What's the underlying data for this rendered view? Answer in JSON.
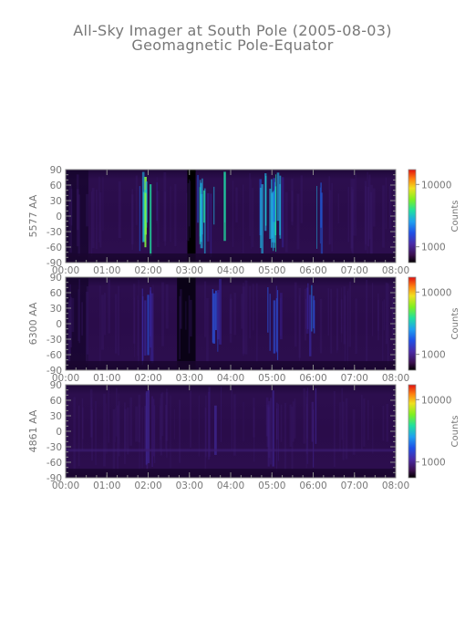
{
  "title": {
    "line1": "All-Sky Imager at South Pole (2005-08-03)",
    "line2": "Geomagnetic Pole-Equator"
  },
  "chart_data": [
    {
      "type": "heatmap",
      "ylabel": "5577 AA",
      "colorbar_label": "Counts",
      "colorbar_ticks": [
        "10000",
        "1000"
      ],
      "x_ticks": [
        "00:00",
        "01:00",
        "02:00",
        "03:00",
        "04:00",
        "05:00",
        "06:00",
        "07:00",
        "08:00"
      ],
      "y_ticks": [
        "90",
        "60",
        "30",
        "0",
        "-30",
        "-60",
        "-90"
      ],
      "xlim": [
        0,
        8
      ],
      "ylim": [
        -90,
        90
      ],
      "dark_gap_hours": [
        2.95,
        3.15
      ],
      "bright_bands_hours": [
        1.9,
        2.05,
        3.3,
        3.65,
        3.8,
        4.8,
        4.9,
        5.1,
        5.95,
        6.05
      ]
    },
    {
      "type": "heatmap",
      "ylabel": "6300 AA",
      "colorbar_label": "Counts",
      "colorbar_ticks": [
        "10000",
        "1000"
      ],
      "x_ticks": [
        "00:00",
        "01:00",
        "02:00",
        "03:00",
        "04:00",
        "05:00",
        "06:00",
        "07:00",
        "08:00"
      ],
      "y_ticks": [
        "90",
        "60",
        "30",
        "0",
        "-30",
        "-60",
        "-90"
      ],
      "xlim": [
        0,
        8
      ],
      "ylim": [
        -90,
        90
      ],
      "bright_bands_hours": [
        1.95,
        3.6,
        4.95,
        5.05,
        5.95
      ]
    },
    {
      "type": "heatmap",
      "ylabel": "4861 AA",
      "colorbar_label": "Counts",
      "colorbar_ticks": [
        "10000",
        "1000"
      ],
      "x_ticks": [
        "00:00",
        "01:00",
        "02:00",
        "03:00",
        "04:00",
        "05:00",
        "06:00",
        "07:00",
        "08:00"
      ],
      "y_ticks": [
        "90",
        "60",
        "30",
        "0",
        "-30",
        "-60",
        "-90"
      ],
      "xlim": [
        0,
        8
      ],
      "ylim": [
        -90,
        90
      ],
      "bright_bands_hours": [
        2.0,
        3.6,
        5.0,
        6.0
      ]
    }
  ]
}
